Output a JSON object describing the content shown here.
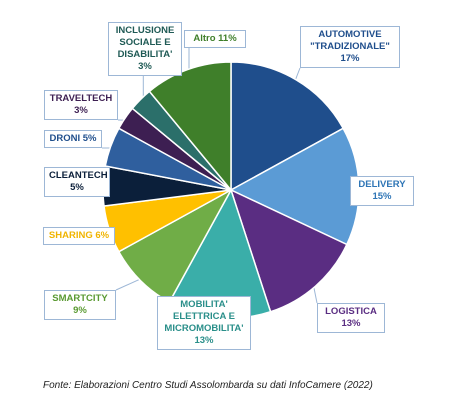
{
  "chart_data": {
    "type": "pie",
    "slices": [
      {
        "label_lines": [
          "AUTOMOTIVE",
          "\"TRADIZIONALE\"",
          "17%"
        ],
        "value": 17,
        "color": "#1f4e8c",
        "text_color": "#1f4e8c"
      },
      {
        "label_lines": [
          "DELIVERY",
          "15%"
        ],
        "value": 15,
        "color": "#5b9bd5",
        "text_color": "#2e75b6"
      },
      {
        "label_lines": [
          "LOGISTICA",
          "13%"
        ],
        "value": 13,
        "color": "#5a2d82",
        "text_color": "#5a2d82"
      },
      {
        "label_lines": [
          "MOBILITA'",
          "ELETTRICA E",
          "MICROMOBILITA'",
          "13%"
        ],
        "value": 13,
        "color": "#3aaea9",
        "text_color": "#2a8f8a"
      },
      {
        "label_lines": [
          "SMARTCITY",
          "9%"
        ],
        "value": 9,
        "color": "#70ad47",
        "text_color": "#5a9a32"
      },
      {
        "label_lines": [
          "SHARING 6%"
        ],
        "value": 6,
        "color": "#ffc000",
        "text_color": "#f0b400"
      },
      {
        "label_lines": [
          "CLEANTECH",
          "5%"
        ],
        "value": 5,
        "color": "#0b1f3a",
        "text_color": "#0b1f3a"
      },
      {
        "label_lines": [
          "DRONI 5%"
        ],
        "value": 5,
        "color": "#2f5f9e",
        "text_color": "#1f4e8c"
      },
      {
        "label_lines": [
          "TRAVELTECH",
          "3%"
        ],
        "value": 3,
        "color": "#3d1f52",
        "text_color": "#3d1f52"
      },
      {
        "label_lines": [
          "INCLUSIONE",
          "SOCIALE E",
          "DISABILITA'",
          "3%"
        ],
        "value": 3,
        "color": "#2b6f6a",
        "text_color": "#1f5a55"
      },
      {
        "label_lines": [
          "Altro 11%"
        ],
        "value": 11,
        "color": "#3f7f2a",
        "text_color": "#3f7f2a"
      }
    ]
  },
  "source_note": "Fonte: Elaborazioni Centro Studi Assolombarda su dati InfoCamere (2022)"
}
